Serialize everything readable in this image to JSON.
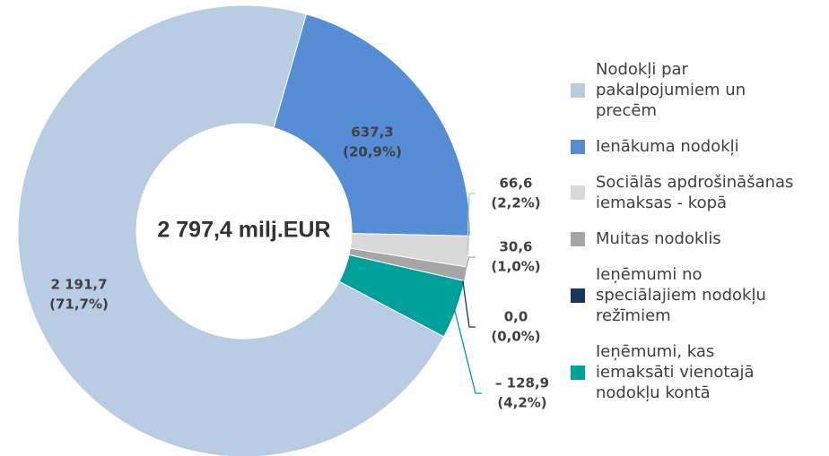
{
  "chart_data": {
    "type": "pie",
    "center_label": "2 797,4 milj.EUR",
    "categories": [
      "Nodokļi par pakalpojumiem un precēm",
      "Ienākuma nodokļi",
      "Sociālās apdrošināšanas iemaksas - kopā",
      "Muitas nodoklis",
      "Ieņēmumi no speciālajiem nodokļu režīmiem",
      "Ieņēmumi, kas iemaksāti vienotajā nodokļu kontā"
    ],
    "colors": [
      "#b8cce4",
      "#558ed5",
      "#d9d9d9",
      "#a6a6a6",
      "#17375e",
      "#00a09a"
    ],
    "values": [
      2191.7,
      637.3,
      66.6,
      30.6,
      0.0,
      -128.9
    ],
    "value_labels": [
      "2 191,7",
      "637,3",
      "66,6",
      "30,6",
      "0,0",
      "– 128,9"
    ],
    "percents": [
      71.7,
      20.9,
      2.2,
      1.0,
      0.0,
      4.2
    ],
    "percent_labels": [
      "(71,7%)",
      "(20,9%)",
      "(2,2%)",
      "(1,0%)",
      "(0,0%)",
      "(4,2%)"
    ]
  }
}
